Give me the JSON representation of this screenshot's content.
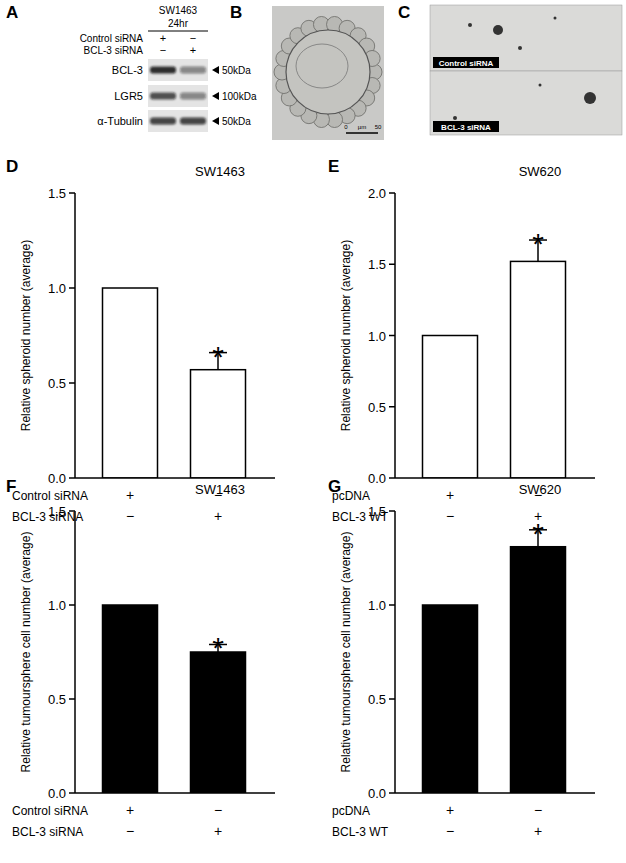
{
  "panel_labels": [
    "A",
    "B",
    "C",
    "D",
    "E",
    "F",
    "G"
  ],
  "blot": {
    "cell_line": "SW1463",
    "time": "24hr",
    "conditions": [
      {
        "label": "Control siRNA",
        "marks": [
          "+",
          "−"
        ]
      },
      {
        "label": "BCL-3 siRNA",
        "marks": [
          "−",
          "+"
        ]
      }
    ],
    "bands": [
      {
        "label": "BCL-3",
        "size": "50kDa",
        "intensities": [
          0.85,
          0.45
        ]
      },
      {
        "label": "LGR5",
        "size": "100kDa",
        "intensities": [
          0.7,
          0.45
        ]
      },
      {
        "label": "α-Tubulin",
        "size": "50kDa",
        "intensities": [
          0.75,
          0.75
        ]
      }
    ]
  },
  "micrograph": {
    "scale_bar": [
      "0",
      "µm",
      "50"
    ]
  },
  "images": {
    "labels": [
      "Control siRNA",
      "BCL-3 siRNA"
    ]
  },
  "chart_data": [
    {
      "type": "bar",
      "title": "SW1463",
      "y_label": "Relative spheroid number (average)",
      "categories": [
        null,
        null
      ],
      "values": [
        1.0,
        0.57
      ],
      "errors": [
        null,
        0.09
      ],
      "color": "#ffffff",
      "ylim": [
        0,
        1.5
      ],
      "yticks": [
        {
          "value": 0,
          "label": "0.0"
        },
        {
          "value": 0.5,
          "label": "0.5"
        },
        {
          "value": 1,
          "label": "1.0"
        },
        {
          "value": 1.5,
          "label": "1.5"
        }
      ],
      "conditions": [
        {
          "label": "Control siRNA",
          "marks": [
            "+",
            "−"
          ]
        },
        {
          "label": "BCL-3 siRNA",
          "marks": [
            "−",
            "+"
          ]
        }
      ],
      "annotations": [
        {
          "text": "*",
          "category": 1
        }
      ]
    },
    {
      "type": "bar",
      "title": "SW620",
      "y_label": "Relative spheroid number (average)",
      "categories": [
        null,
        null
      ],
      "values": [
        1.0,
        1.52
      ],
      "errors": [
        null,
        0.15
      ],
      "color": "#ffffff",
      "ylim": [
        0,
        2
      ],
      "yticks": [
        {
          "value": 0,
          "label": "0.0"
        },
        {
          "value": 0.5,
          "label": "0.5"
        },
        {
          "value": 1,
          "label": "1.0"
        },
        {
          "value": 1.5,
          "label": "1.5"
        },
        {
          "value": 2,
          "label": "2.0"
        }
      ],
      "conditions": [
        {
          "label": "pcDNA",
          "marks": [
            "+",
            "−"
          ]
        },
        {
          "label": "BCL-3 WT",
          "marks": [
            "−",
            "+"
          ]
        }
      ],
      "annotations": [
        {
          "text": "*",
          "category": 1
        }
      ]
    },
    {
      "type": "bar",
      "title": "SW1463",
      "y_label": "Relative tumoursphere cell number (average)",
      "categories": [
        null,
        null
      ],
      "values": [
        1.0,
        0.75
      ],
      "errors": [
        null,
        0.04
      ],
      "color": "#000000",
      "ylim": [
        0,
        1.5
      ],
      "yticks": [
        {
          "value": 0,
          "label": "0.0"
        },
        {
          "value": 0.5,
          "label": "0.5"
        },
        {
          "value": 1,
          "label": "1.0"
        },
        {
          "value": 1.5,
          "label": "1.5"
        }
      ],
      "conditions": [
        {
          "label": "Control siRNA",
          "marks": [
            "+",
            "−"
          ]
        },
        {
          "label": "BCL-3 siRNA",
          "marks": [
            "−",
            "+"
          ]
        }
      ],
      "annotations": [
        {
          "text": "*",
          "category": 1
        }
      ]
    },
    {
      "type": "bar",
      "title": "SW620",
      "y_label": "Relative tumoursphere cell number (average)",
      "categories": [
        null,
        null
      ],
      "values": [
        1.0,
        1.31
      ],
      "errors": [
        null,
        0.09
      ],
      "color": "#000000",
      "ylim": [
        0,
        1.5
      ],
      "yticks": [
        {
          "value": 0,
          "label": "0.0"
        },
        {
          "value": 0.5,
          "label": "0.5"
        },
        {
          "value": 1,
          "label": "1.0"
        },
        {
          "value": 1.5,
          "label": "1.5"
        }
      ],
      "conditions": [
        {
          "label": "pcDNA",
          "marks": [
            "+",
            "−"
          ]
        },
        {
          "label": "BCL-3 WT",
          "marks": [
            "−",
            "+"
          ]
        }
      ],
      "annotations": [
        {
          "text": "*",
          "category": 1
        }
      ]
    }
  ]
}
